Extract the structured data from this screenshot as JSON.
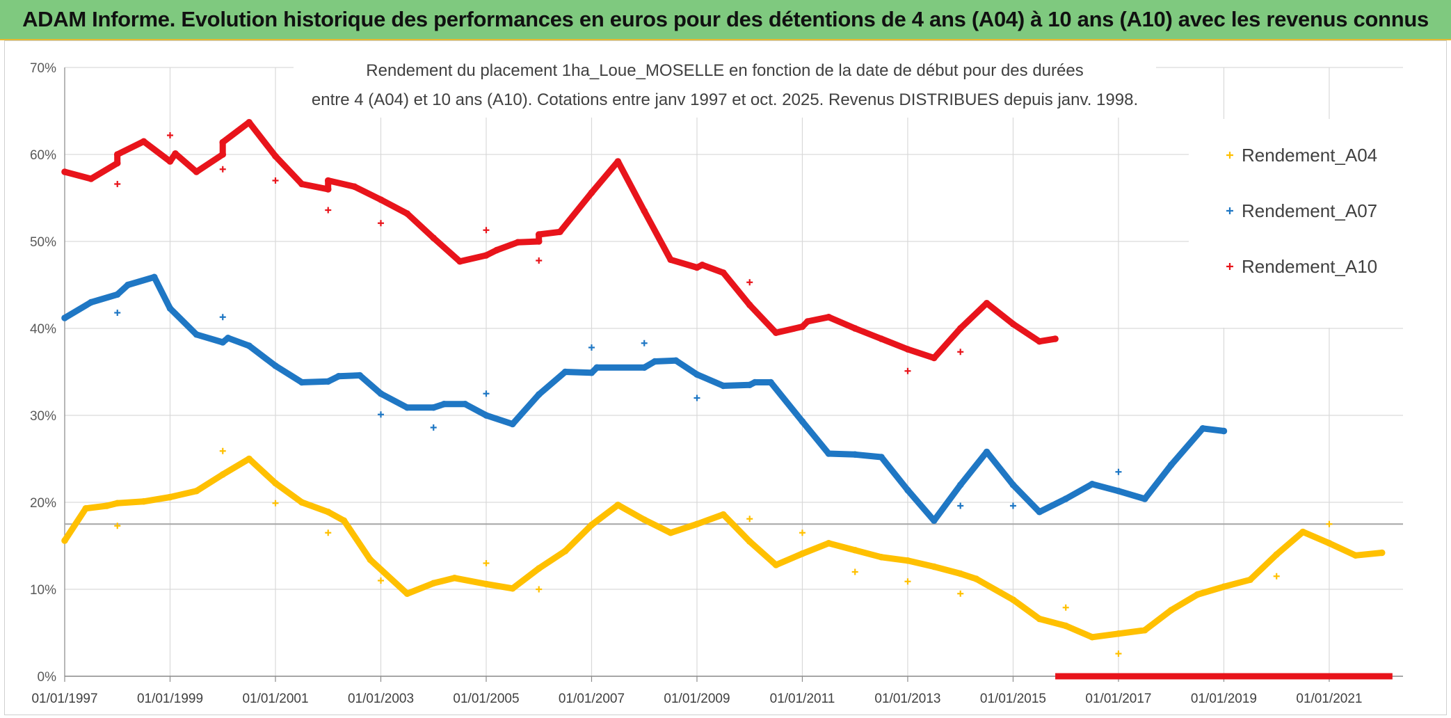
{
  "page_title": "ADAM Informe. Evolution historique des performances en euros pour des détentions de 4 ans (A04) à 10 ans (A10) avec les revenus connus distribués",
  "colors": {
    "banner": "#7fc97f",
    "A04": "#ffc000",
    "A07": "#1f77c4",
    "A10": "#e8141b",
    "grid": "#d9d9d9",
    "reference_line": "#a6a6a6"
  },
  "chart_data": {
    "type": "scatter",
    "title_line1": "Rendement du placement 1ha_Loue_MOSELLE en fonction de la date de début pour des durées",
    "title_line2": "entre 4 (A04) et 10 ans (A10). Cotations entre janv 1997 et oct. 2025. Revenus DISTRIBUES depuis janv. 1998.",
    "x_unit": "year",
    "xlim": [
      1997.0,
      2022.4
    ],
    "ylim": [
      0,
      70
    ],
    "y_ticks": [
      0,
      10,
      20,
      30,
      40,
      50,
      60,
      70
    ],
    "y_tick_labels": [
      "0%",
      "10%",
      "20%",
      "30%",
      "40%",
      "50%",
      "60%",
      "70%"
    ],
    "x_ticks": [
      1997,
      1999,
      2001,
      2003,
      2005,
      2007,
      2009,
      2011,
      2013,
      2015,
      2017,
      2019,
      2021
    ],
    "x_tick_labels": [
      "01/01/1997",
      "01/01/1999",
      "01/01/2001",
      "01/01/2003",
      "01/01/2005",
      "01/01/2007",
      "01/01/2009",
      "01/01/2011",
      "01/01/2013",
      "01/01/2015",
      "01/01/2017",
      "01/01/2019",
      "01/01/2021"
    ],
    "reference_line_y": 17.5,
    "legend_position": "right",
    "series": [
      {
        "name": "Rendement_A04",
        "line": [
          [
            1997.0,
            15.6
          ],
          [
            1997.4,
            19.3
          ],
          [
            1997.8,
            19.6
          ],
          [
            1998.0,
            19.9
          ],
          [
            1998.5,
            20.1
          ],
          [
            1999.0,
            20.6
          ],
          [
            1999.5,
            21.3
          ],
          [
            2000.0,
            23.2
          ],
          [
            2000.5,
            25.0
          ],
          [
            2001.0,
            22.2
          ],
          [
            2001.5,
            20.0
          ],
          [
            2002.0,
            18.9
          ],
          [
            2002.3,
            17.9
          ],
          [
            2002.8,
            13.4
          ],
          [
            2003.5,
            9.5
          ],
          [
            2004.0,
            10.7
          ],
          [
            2004.4,
            11.3
          ],
          [
            2005.0,
            10.6
          ],
          [
            2005.5,
            10.1
          ],
          [
            2006.0,
            12.4
          ],
          [
            2006.5,
            14.4
          ],
          [
            2007.0,
            17.4
          ],
          [
            2007.5,
            19.7
          ],
          [
            2008.0,
            18.0
          ],
          [
            2008.5,
            16.5
          ],
          [
            2009.0,
            17.5
          ],
          [
            2009.5,
            18.6
          ],
          [
            2010.0,
            15.5
          ],
          [
            2010.5,
            12.8
          ],
          [
            2011.0,
            14.1
          ],
          [
            2011.5,
            15.3
          ],
          [
            2012.0,
            14.5
          ],
          [
            2012.5,
            13.7
          ],
          [
            2013.0,
            13.3
          ],
          [
            2013.5,
            12.6
          ],
          [
            2014.0,
            11.8
          ],
          [
            2014.3,
            11.2
          ],
          [
            2015.0,
            8.8
          ],
          [
            2015.5,
            6.6
          ],
          [
            2016.0,
            5.8
          ],
          [
            2016.5,
            4.5
          ],
          [
            2017.0,
            4.9
          ],
          [
            2017.5,
            5.3
          ],
          [
            2018.0,
            7.6
          ],
          [
            2018.5,
            9.4
          ],
          [
            2019.0,
            10.3
          ],
          [
            2019.5,
            11.1
          ],
          [
            2020.0,
            14.0
          ],
          [
            2020.5,
            16.6
          ],
          [
            2021.0,
            15.3
          ],
          [
            2021.5,
            13.9
          ],
          [
            2022.0,
            14.2
          ]
        ],
        "outliers": [
          [
            1998.0,
            17.3
          ],
          [
            2000.0,
            25.9
          ],
          [
            2001.0,
            19.9
          ],
          [
            2002.0,
            16.5
          ],
          [
            2003.0,
            11.0
          ],
          [
            2005.0,
            13.0
          ],
          [
            2006.0,
            10.0
          ],
          [
            2010.0,
            18.1
          ],
          [
            2011.0,
            16.5
          ],
          [
            2012.0,
            12.0
          ],
          [
            2013.0,
            10.9
          ],
          [
            2014.0,
            9.5
          ],
          [
            2016.0,
            7.9
          ],
          [
            2017.0,
            2.6
          ],
          [
            2020.0,
            11.5
          ],
          [
            2021.0,
            17.5
          ]
        ]
      },
      {
        "name": "Rendement_A07",
        "line": [
          [
            1997.0,
            41.2
          ],
          [
            1997.5,
            43.0
          ],
          [
            1998.0,
            43.9
          ],
          [
            1998.2,
            45.0
          ],
          [
            1998.7,
            45.9
          ],
          [
            1999.0,
            42.3
          ],
          [
            1999.5,
            39.3
          ],
          [
            2000.0,
            38.4
          ],
          [
            2000.1,
            38.9
          ],
          [
            2000.5,
            38.0
          ],
          [
            2001.0,
            35.7
          ],
          [
            2001.5,
            33.8
          ],
          [
            2002.0,
            33.9
          ],
          [
            2002.2,
            34.5
          ],
          [
            2002.6,
            34.6
          ],
          [
            2003.0,
            32.5
          ],
          [
            2003.5,
            30.9
          ],
          [
            2004.0,
            30.9
          ],
          [
            2004.2,
            31.3
          ],
          [
            2004.6,
            31.3
          ],
          [
            2005.0,
            30.0
          ],
          [
            2005.5,
            29.0
          ],
          [
            2006.0,
            32.4
          ],
          [
            2006.5,
            35.0
          ],
          [
            2007.0,
            34.9
          ],
          [
            2007.1,
            35.5
          ],
          [
            2008.0,
            35.5
          ],
          [
            2008.2,
            36.2
          ],
          [
            2008.6,
            36.3
          ],
          [
            2009.0,
            34.7
          ],
          [
            2009.5,
            33.4
          ],
          [
            2010.0,
            33.5
          ],
          [
            2010.1,
            33.8
          ],
          [
            2010.4,
            33.8
          ],
          [
            2011.0,
            29.3
          ],
          [
            2011.5,
            25.6
          ],
          [
            2012.0,
            25.5
          ],
          [
            2012.5,
            25.2
          ],
          [
            2013.0,
            21.4
          ],
          [
            2013.5,
            17.9
          ],
          [
            2014.0,
            22.0
          ],
          [
            2014.5,
            25.8
          ],
          [
            2015.0,
            22.0
          ],
          [
            2015.5,
            18.9
          ],
          [
            2016.0,
            20.4
          ],
          [
            2016.5,
            22.1
          ],
          [
            2017.0,
            21.3
          ],
          [
            2017.5,
            20.4
          ],
          [
            2018.0,
            24.3
          ],
          [
            2018.6,
            28.5
          ],
          [
            2019.0,
            28.2
          ]
        ],
        "outliers": [
          [
            1998.0,
            41.8
          ],
          [
            2000.0,
            41.3
          ],
          [
            2003.0,
            30.1
          ],
          [
            2004.0,
            28.6
          ],
          [
            2005.0,
            32.5
          ],
          [
            2007.0,
            37.8
          ],
          [
            2008.0,
            38.3
          ],
          [
            2009.0,
            32.0
          ],
          [
            2014.0,
            19.6
          ],
          [
            2015.0,
            19.6
          ],
          [
            2017.0,
            23.5
          ]
        ]
      },
      {
        "name": "Rendement_A10",
        "line": [
          [
            1997.0,
            58.0
          ],
          [
            1997.5,
            57.2
          ],
          [
            1998.0,
            59.0
          ],
          [
            1998.0,
            60.0
          ],
          [
            1998.5,
            61.5
          ],
          [
            1999.0,
            59.2
          ],
          [
            1999.1,
            60.1
          ],
          [
            1999.5,
            58.0
          ],
          [
            2000.0,
            60.0
          ],
          [
            2000.0,
            61.4
          ],
          [
            2000.5,
            63.7
          ],
          [
            2001.0,
            59.8
          ],
          [
            2001.5,
            56.6
          ],
          [
            2002.0,
            56.0
          ],
          [
            2002.0,
            57.0
          ],
          [
            2002.5,
            56.3
          ],
          [
            2003.0,
            54.8
          ],
          [
            2003.5,
            53.2
          ],
          [
            2004.0,
            50.4
          ],
          [
            2004.5,
            47.7
          ],
          [
            2005.0,
            48.4
          ],
          [
            2005.2,
            49.0
          ],
          [
            2005.6,
            49.9
          ],
          [
            2006.0,
            50.0
          ],
          [
            2006.0,
            50.8
          ],
          [
            2006.4,
            51.1
          ],
          [
            2007.0,
            55.6
          ],
          [
            2007.5,
            59.2
          ],
          [
            2008.0,
            53.5
          ],
          [
            2008.5,
            47.9
          ],
          [
            2009.0,
            47.0
          ],
          [
            2009.1,
            47.3
          ],
          [
            2009.5,
            46.4
          ],
          [
            2010.0,
            42.7
          ],
          [
            2010.5,
            39.5
          ],
          [
            2011.0,
            40.2
          ],
          [
            2011.1,
            40.8
          ],
          [
            2011.5,
            41.3
          ],
          [
            2012.0,
            40.0
          ],
          [
            2012.5,
            38.8
          ],
          [
            2013.0,
            37.6
          ],
          [
            2013.5,
            36.6
          ],
          [
            2014.0,
            40.0
          ],
          [
            2014.5,
            42.9
          ],
          [
            2015.0,
            40.5
          ],
          [
            2015.5,
            38.5
          ],
          [
            2015.8,
            38.8
          ]
        ],
        "outliers": [
          [
            1998.0,
            56.6
          ],
          [
            1999.0,
            62.2
          ],
          [
            2000.0,
            58.3
          ],
          [
            2001.0,
            57.0
          ],
          [
            2002.0,
            53.6
          ],
          [
            2003.0,
            52.1
          ],
          [
            2005.0,
            51.3
          ],
          [
            2006.0,
            47.8
          ],
          [
            2010.0,
            45.3
          ],
          [
            2013.0,
            35.1
          ],
          [
            2014.0,
            37.3
          ]
        ],
        "zero_tail": [
          2015.8,
          2022.2
        ]
      }
    ]
  }
}
